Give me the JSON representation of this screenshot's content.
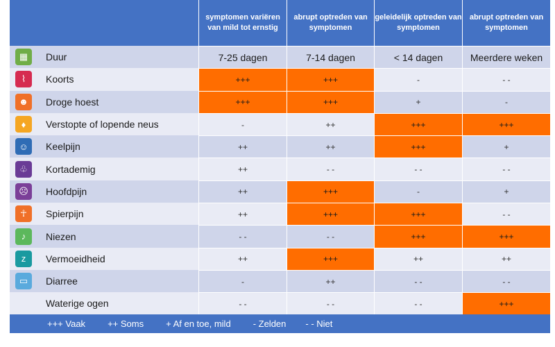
{
  "header": {
    "columns": [
      "symptomen variëren van mild tot ernstig",
      "abrupt optreden van symptomen",
      "geleidelijk optreden van symptomen",
      "abrupt optreden van symptomen"
    ]
  },
  "colors": {
    "header_bg": "#4472c4",
    "highlight": "#ff6d00",
    "row_odd": "#cfd5ea",
    "row_even": "#e9ebf5"
  },
  "rows": [
    {
      "label": "Duur",
      "icon": "calendar-icon",
      "icon_color": "#70ad47",
      "glyph": "▦",
      "values": [
        "7-25 dagen",
        "7-14 dagen",
        "< 14 dagen",
        "Meerdere weken"
      ],
      "highlight": [
        false,
        false,
        false,
        false
      ]
    },
    {
      "label": "Koorts",
      "icon": "thermometer-icon",
      "icon_color": "#d62b50",
      "glyph": "⌇",
      "values": [
        "+++",
        "+++",
        "-",
        "- -"
      ],
      "highlight": [
        true,
        true,
        false,
        false
      ]
    },
    {
      "label": "Droge hoest",
      "icon": "cough-icon",
      "icon_color": "#f07028",
      "glyph": "☻",
      "values": [
        "+++",
        "+++",
        "+",
        "-"
      ],
      "highlight": [
        true,
        true,
        false,
        false
      ]
    },
    {
      "label": "Verstopte of lopende neus",
      "icon": "droplet-icon",
      "icon_color": "#f5a623",
      "glyph": "♦",
      "values": [
        "-",
        "++",
        "+++",
        "+++"
      ],
      "highlight": [
        false,
        false,
        true,
        true
      ]
    },
    {
      "label": "Keelpijn",
      "icon": "throat-icon",
      "icon_color": "#2f6cb5",
      "glyph": "☺",
      "values": [
        "++",
        "++",
        "+++",
        "+"
      ],
      "highlight": [
        false,
        false,
        true,
        false
      ]
    },
    {
      "label": "Kortademig",
      "icon": "lungs-icon",
      "icon_color": "#6a3b96",
      "glyph": "♧",
      "values": [
        "++",
        "- -",
        "- -",
        "- -"
      ],
      "highlight": [
        false,
        false,
        false,
        false
      ]
    },
    {
      "label": "Hoofdpijn",
      "icon": "headache-icon",
      "icon_color": "#7b3f98",
      "glyph": "☹",
      "values": [
        "++",
        "+++",
        "-",
        "+"
      ],
      "highlight": [
        false,
        true,
        false,
        false
      ]
    },
    {
      "label": "Spierpijn",
      "icon": "muscle-icon",
      "icon_color": "#f07028",
      "glyph": "☥",
      "values": [
        "++",
        "+++",
        "+++",
        "- -"
      ],
      "highlight": [
        false,
        true,
        true,
        false
      ]
    },
    {
      "label": "Niezen",
      "icon": "nose-icon",
      "icon_color": "#5cb85c",
      "glyph": "♪",
      "values": [
        "- -",
        "- -",
        "+++",
        "+++"
      ],
      "highlight": [
        false,
        false,
        true,
        true
      ]
    },
    {
      "label": "Vermoeidheid",
      "icon": "sleep-icon",
      "icon_color": "#1a9aa0",
      "glyph": "z",
      "values": [
        "++",
        "+++",
        "++",
        "++"
      ],
      "highlight": [
        false,
        true,
        false,
        false
      ]
    },
    {
      "label": "Diarree",
      "icon": "toilet-icon",
      "icon_color": "#5aaadd",
      "glyph": "▭",
      "values": [
        "-",
        "++",
        "- -",
        "- -"
      ],
      "highlight": [
        false,
        false,
        false,
        false
      ]
    },
    {
      "label": "Waterige ogen",
      "icon": "",
      "icon_color": "",
      "glyph": "",
      "values": [
        "- -",
        "- -",
        "- -",
        "+++"
      ],
      "highlight": [
        false,
        false,
        false,
        true
      ]
    }
  ],
  "legend": {
    "items": [
      {
        "text": "+++ Vaak",
        "pad": 54
      },
      {
        "text": "++ Soms",
        "pad": 32
      },
      {
        "text": "+ Af en toe, mild",
        "pad": 32
      },
      {
        "text": "- Zelden",
        "pad": 32
      },
      {
        "text": "- - Niet",
        "pad": 28
      }
    ]
  }
}
